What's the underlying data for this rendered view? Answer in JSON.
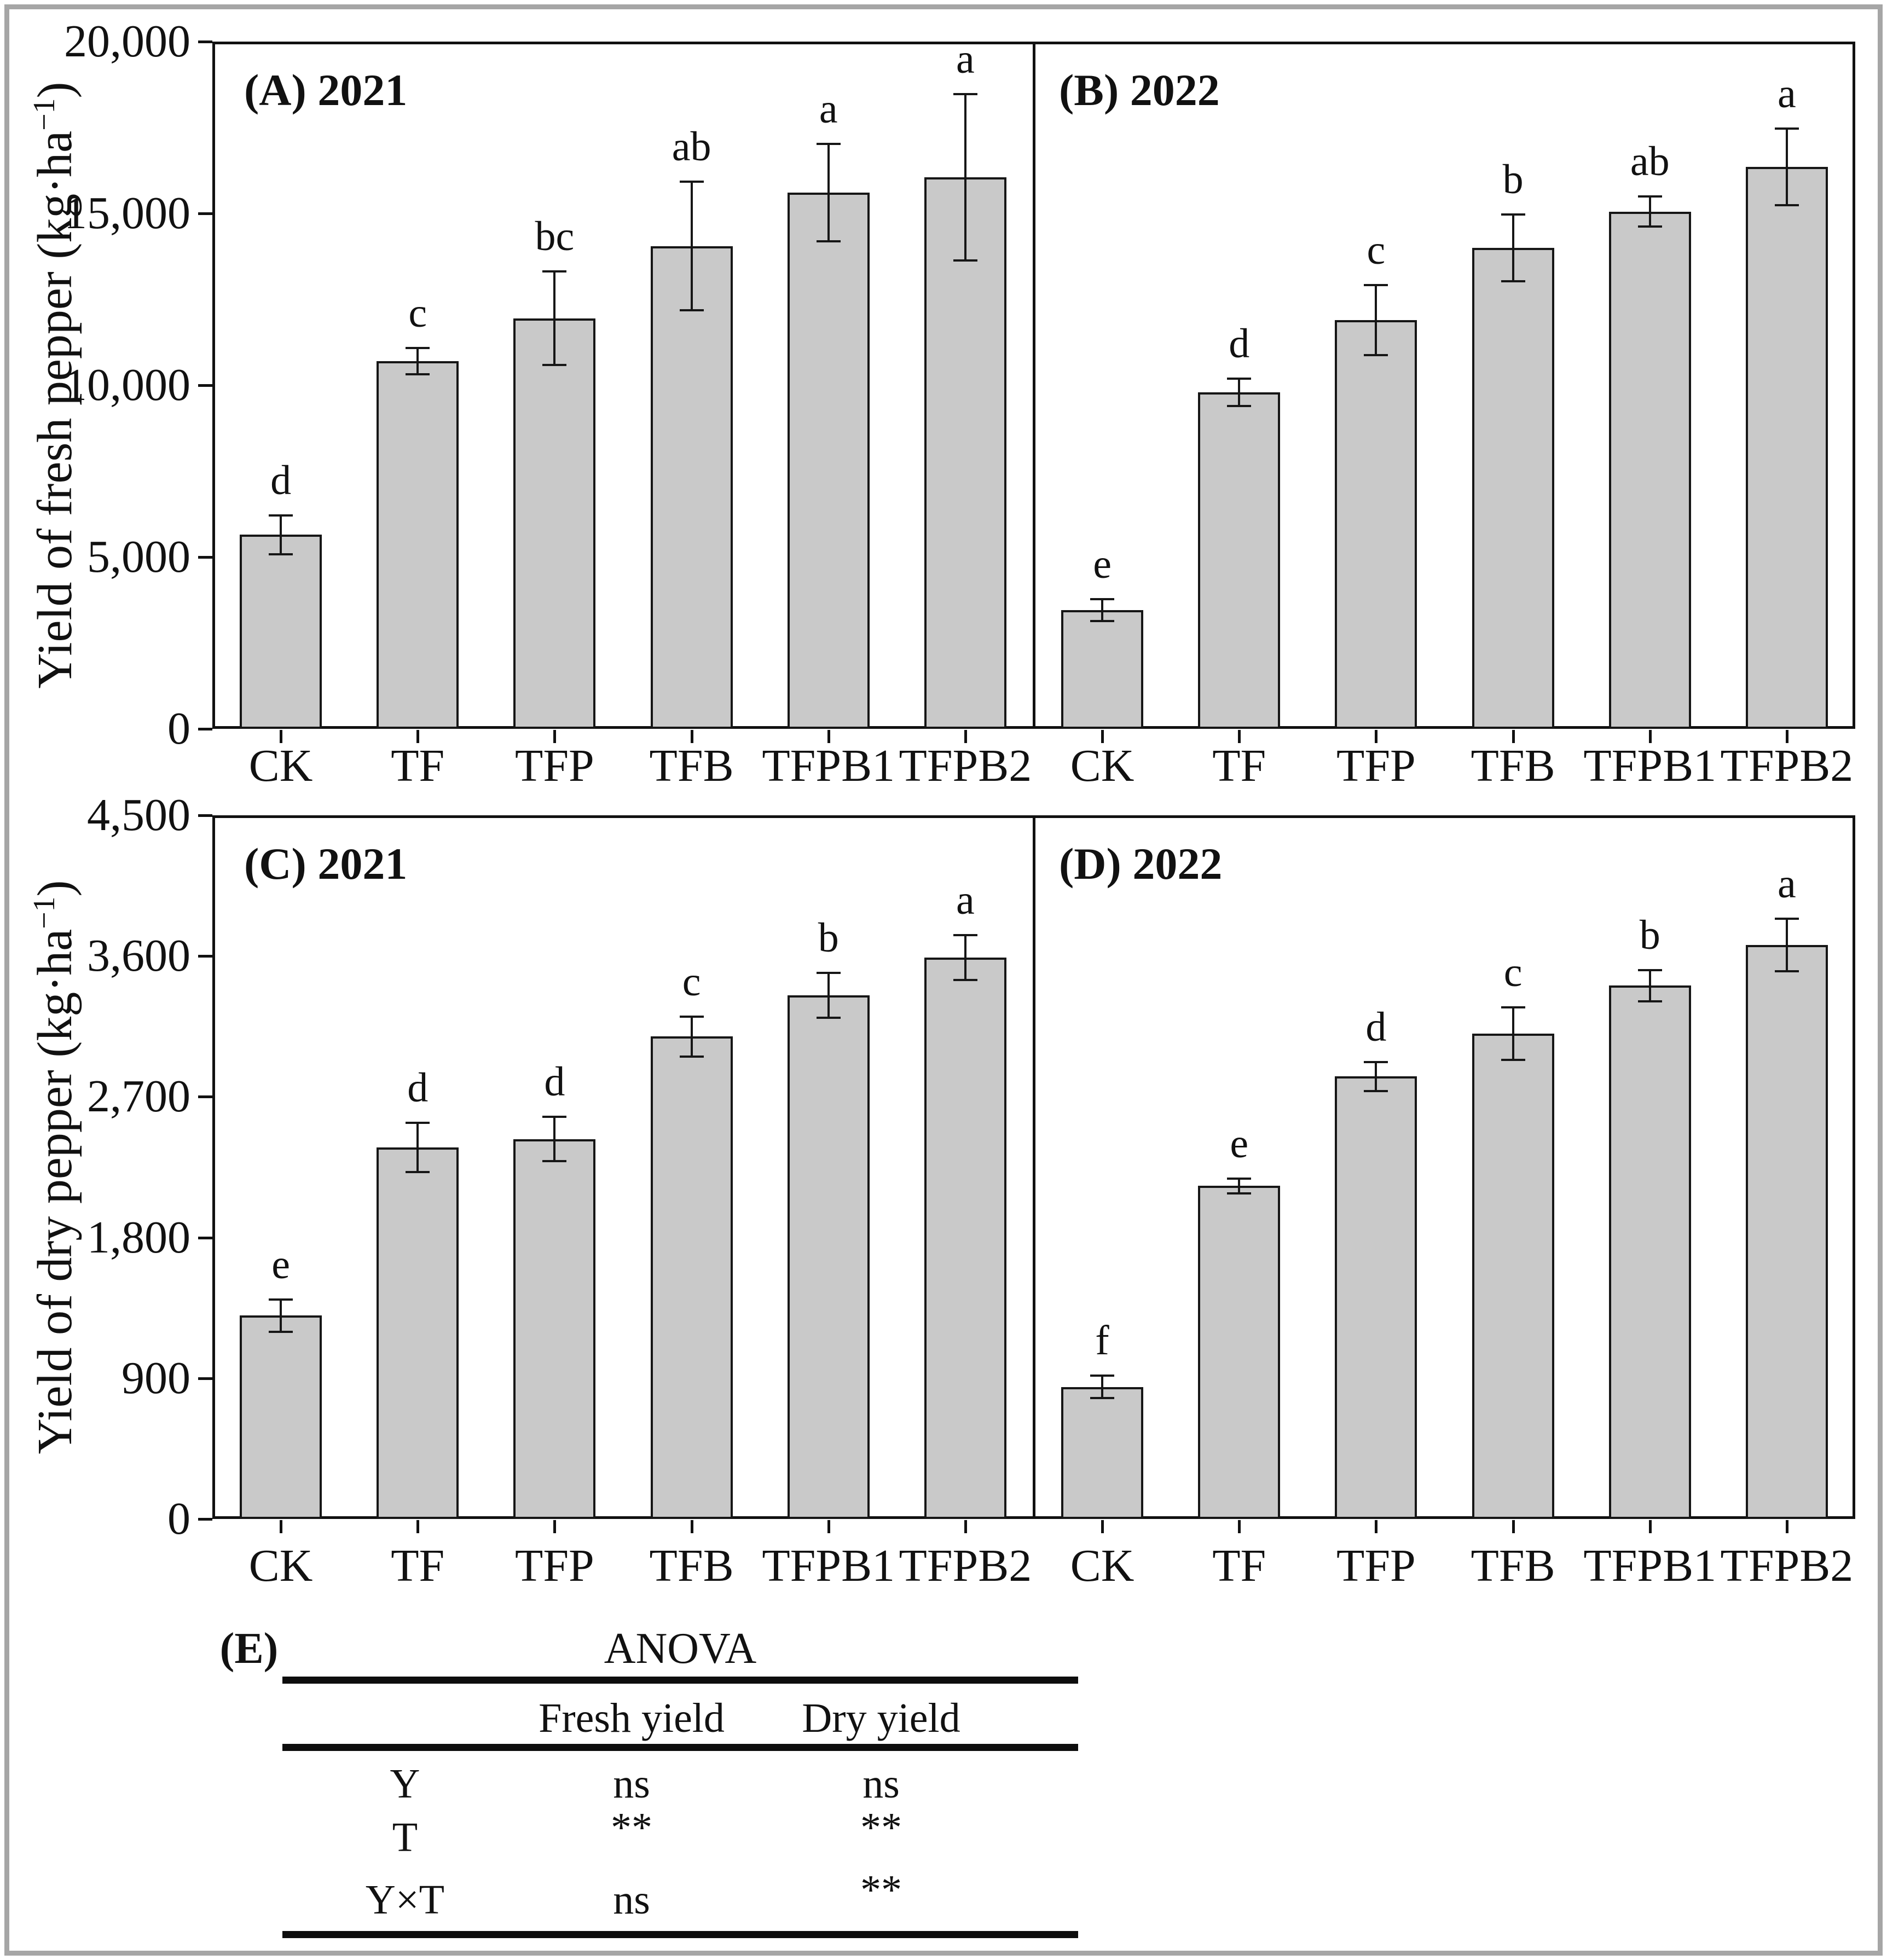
{
  "figure_caption_letters": [
    "(A)",
    "(B)",
    "(C)",
    "(D)",
    "(E)"
  ],
  "colors": {
    "bar_fill": "#c9c9c9",
    "bar_border": "#161616",
    "axis": "#111111",
    "frame": "#a6a6a6"
  },
  "axes": {
    "fresh": {
      "title_prefix": "Yield of fresh pepper (kg·ha",
      "title_sup": "−1",
      "title_suffix": ")",
      "tick_labels": [
        "0",
        "5,000",
        "10,000",
        "15,000",
        "20,000"
      ],
      "tick_values": [
        0,
        5000,
        10000,
        15000,
        20000
      ],
      "ylim": [
        0,
        20000
      ]
    },
    "dry": {
      "title_prefix": "Yield of dry pepper (kg·ha",
      "title_sup": "−1",
      "title_suffix": ")",
      "tick_labels": [
        "0",
        "900",
        "1,800",
        "2,700",
        "3,600",
        "4,500"
      ],
      "tick_values": [
        0,
        900,
        1800,
        2700,
        3600,
        4500
      ],
      "ylim": [
        0,
        4500
      ]
    }
  },
  "chart_data": [
    {
      "type": "bar",
      "panel": "A",
      "title": "(A) 2021",
      "axis": "fresh",
      "ylabel": "Yield of fresh pepper (kg·ha⁻¹)",
      "ylim": [
        0,
        20000
      ],
      "categories": [
        "CK",
        "TF",
        "TFP",
        "TFB",
        "TFPB1",
        "TFPB2"
      ],
      "values": [
        5650,
        10700,
        11950,
        14050,
        15600,
        16050
      ],
      "errors": [
        600,
        420,
        1400,
        1900,
        1450,
        2450
      ],
      "letters": [
        "d",
        "c",
        "bc",
        "ab",
        "a",
        "a"
      ]
    },
    {
      "type": "bar",
      "panel": "B",
      "title": "(B) 2022",
      "axis": "fresh",
      "ylabel": "Yield of fresh pepper (kg·ha⁻¹)",
      "ylim": [
        0,
        20000
      ],
      "categories": [
        "CK",
        "TF",
        "TFP",
        "TFB",
        "TFPB1",
        "TFPB2"
      ],
      "values": [
        3450,
        9800,
        11900,
        14000,
        15050,
        16350
      ],
      "errors": [
        350,
        430,
        1050,
        1000,
        470,
        1150
      ],
      "letters": [
        "e",
        "d",
        "c",
        "b",
        "ab",
        "a"
      ]
    },
    {
      "type": "bar",
      "panel": "C",
      "title": "(C) 2021",
      "axis": "dry",
      "ylabel": "Yield of dry pepper (kg·ha⁻¹)",
      "ylim": [
        0,
        4500
      ],
      "categories": [
        "CK",
        "TF",
        "TFP",
        "TFB",
        "TFPB1",
        "TFPB2"
      ],
      "values": [
        1300,
        2375,
        2430,
        3085,
        3350,
        3590
      ],
      "errors": [
        110,
        165,
        150,
        135,
        150,
        150
      ],
      "letters": [
        "e",
        "d",
        "d",
        "c",
        "b",
        "a"
      ]
    },
    {
      "type": "bar",
      "panel": "D",
      "title": "(D) 2022",
      "axis": "dry",
      "ylabel": "Yield of dry pepper (kg·ha⁻¹)",
      "ylim": [
        0,
        4500
      ],
      "categories": [
        "CK",
        "TF",
        "TFP",
        "TFB",
        "TFPB1",
        "TFPB2"
      ],
      "values": [
        845,
        2130,
        2830,
        3105,
        3410,
        3670
      ],
      "errors": [
        80,
        55,
        100,
        175,
        105,
        175
      ],
      "letters": [
        "f",
        "e",
        "d",
        "c",
        "b",
        "a"
      ]
    }
  ],
  "anova": {
    "panel_label": "(E)",
    "title": "ANOVA",
    "column_headers": [
      "Fresh yield",
      "Dry yield"
    ],
    "rows": [
      {
        "factor": "Y",
        "fresh": "ns",
        "dry": "ns"
      },
      {
        "factor": "T",
        "fresh": "**",
        "dry": "**"
      },
      {
        "factor": "Y×T",
        "fresh": "ns",
        "dry": "**"
      }
    ]
  }
}
